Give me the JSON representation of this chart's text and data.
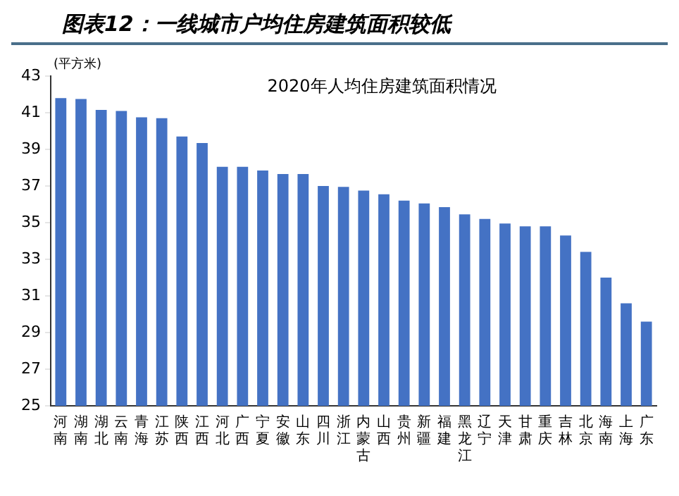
{
  "chart_data": {
    "type": "bar",
    "title": "图表12：一线城市户均住房建筑面积较低",
    "subtitle": "2020年人均住房建筑面积情况",
    "ylabel": "(平方米)",
    "categories": [
      "河南",
      "湖南",
      "湖北",
      "云南",
      "青海",
      "江苏",
      "陕西",
      "江西",
      "河北",
      "广西",
      "宁夏",
      "安徽",
      "山东",
      "四川",
      "浙江",
      "内蒙古",
      "山西",
      "贵州",
      "新疆",
      "福建",
      "黑龙江",
      "辽宁",
      "天津",
      "甘肃",
      "重庆",
      "吉林",
      "北京",
      "海南",
      "上海",
      "广东"
    ],
    "values": [
      41.8,
      41.75,
      41.15,
      41.1,
      40.75,
      40.7,
      39.7,
      39.35,
      38.05,
      38.05,
      37.85,
      37.65,
      37.65,
      37.0,
      36.95,
      36.75,
      36.55,
      36.2,
      36.05,
      35.85,
      35.45,
      35.2,
      34.95,
      34.8,
      34.8,
      34.3,
      33.4,
      32.0,
      30.6,
      29.6
    ],
    "color": "#4472c4",
    "ylim": [
      25,
      43
    ],
    "yticks": [
      25,
      27,
      29,
      31,
      33,
      35,
      37,
      39,
      41,
      43
    ],
    "grid": false,
    "legend": false
  }
}
